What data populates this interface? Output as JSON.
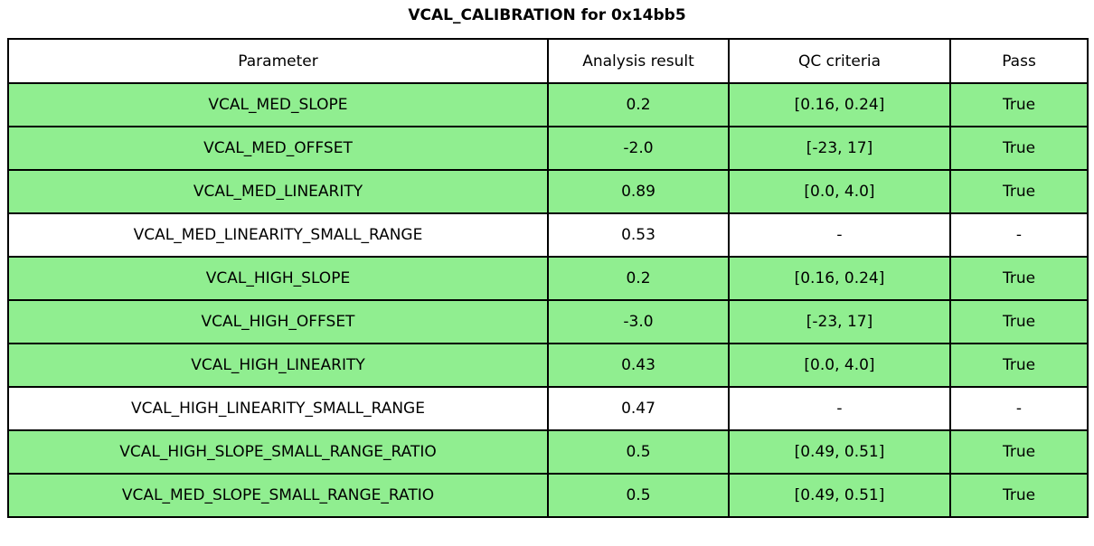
{
  "title": "VCAL_CALIBRATION for 0x14bb5",
  "colors": {
    "pass_row_bg": "#90EE90",
    "neutral_row_bg": "#FFFFFF",
    "header_bg": "#FFFFFF",
    "border": "#000000",
    "text": "#000000"
  },
  "chart_data": {
    "type": "table",
    "title": "VCAL_CALIBRATION for 0x14bb5",
    "columns": [
      "Parameter",
      "Analysis result",
      "QC criteria",
      "Pass"
    ],
    "rows": [
      {
        "cells": [
          "VCAL_MED_SLOPE",
          "0.2",
          "[0.16, 0.24]",
          "True"
        ],
        "highlighted": true
      },
      {
        "cells": [
          "VCAL_MED_OFFSET",
          "-2.0",
          "[-23, 17]",
          "True"
        ],
        "highlighted": true
      },
      {
        "cells": [
          "VCAL_MED_LINEARITY",
          "0.89",
          "[0.0, 4.0]",
          "True"
        ],
        "highlighted": true
      },
      {
        "cells": [
          "VCAL_MED_LINEARITY_SMALL_RANGE",
          "0.53",
          "-",
          "-"
        ],
        "highlighted": false
      },
      {
        "cells": [
          "VCAL_HIGH_SLOPE",
          "0.2",
          "[0.16, 0.24]",
          "True"
        ],
        "highlighted": true
      },
      {
        "cells": [
          "VCAL_HIGH_OFFSET",
          "-3.0",
          "[-23, 17]",
          "True"
        ],
        "highlighted": true
      },
      {
        "cells": [
          "VCAL_HIGH_LINEARITY",
          "0.43",
          "[0.0, 4.0]",
          "True"
        ],
        "highlighted": true
      },
      {
        "cells": [
          "VCAL_HIGH_LINEARITY_SMALL_RANGE",
          "0.47",
          "-",
          "-"
        ],
        "highlighted": false
      },
      {
        "cells": [
          "VCAL_HIGH_SLOPE_SMALL_RANGE_RATIO",
          "0.5",
          "[0.49, 0.51]",
          "True"
        ],
        "highlighted": true
      },
      {
        "cells": [
          "VCAL_MED_SLOPE_SMALL_RANGE_RATIO",
          "0.5",
          "[0.49, 0.51]",
          "True"
        ],
        "highlighted": true
      }
    ]
  }
}
